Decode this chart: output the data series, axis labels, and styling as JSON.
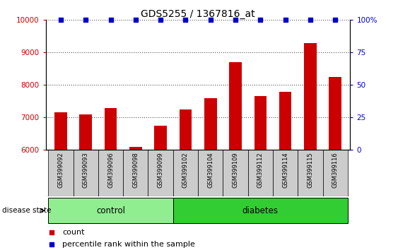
{
  "title": "GDS5255 / 1367816_at",
  "samples": [
    "GSM399092",
    "GSM399093",
    "GSM399096",
    "GSM399098",
    "GSM399099",
    "GSM399102",
    "GSM399104",
    "GSM399109",
    "GSM399112",
    "GSM399114",
    "GSM399115",
    "GSM399116"
  ],
  "counts": [
    7150,
    7100,
    7300,
    6100,
    6750,
    7250,
    7600,
    8700,
    7650,
    7800,
    9300,
    8250
  ],
  "percentile_ranks": [
    100,
    100,
    100,
    100,
    100,
    100,
    100,
    100,
    100,
    100,
    100,
    100
  ],
  "bar_color": "#cc0000",
  "percentile_color": "#0000cc",
  "ylim_left": [
    6000,
    10000
  ],
  "ylim_right": [
    0,
    100
  ],
  "yticks_left": [
    6000,
    7000,
    8000,
    9000,
    10000
  ],
  "yticks_right": [
    0,
    25,
    50,
    75,
    100
  ],
  "ytick_labels_right": [
    "0",
    "25",
    "50",
    "75",
    "100%"
  ],
  "groups": [
    {
      "label": "control",
      "start": 0,
      "end": 5,
      "color": "#90ee90"
    },
    {
      "label": "diabetes",
      "start": 5,
      "end": 12,
      "color": "#32cd32"
    }
  ],
  "group_label_prefix": "disease state",
  "legend_count_label": "count",
  "legend_percentile_label": "percentile rank within the sample",
  "bar_width": 0.5,
  "background_color": "#ffffff",
  "tick_label_color_left": "#cc0000",
  "tick_label_color_right": "#0000cc",
  "dotted_grid_color": "#555555",
  "sample_box_color": "#cccccc",
  "control_color": "#aaffaa",
  "diabetes_color": "#44dd44"
}
